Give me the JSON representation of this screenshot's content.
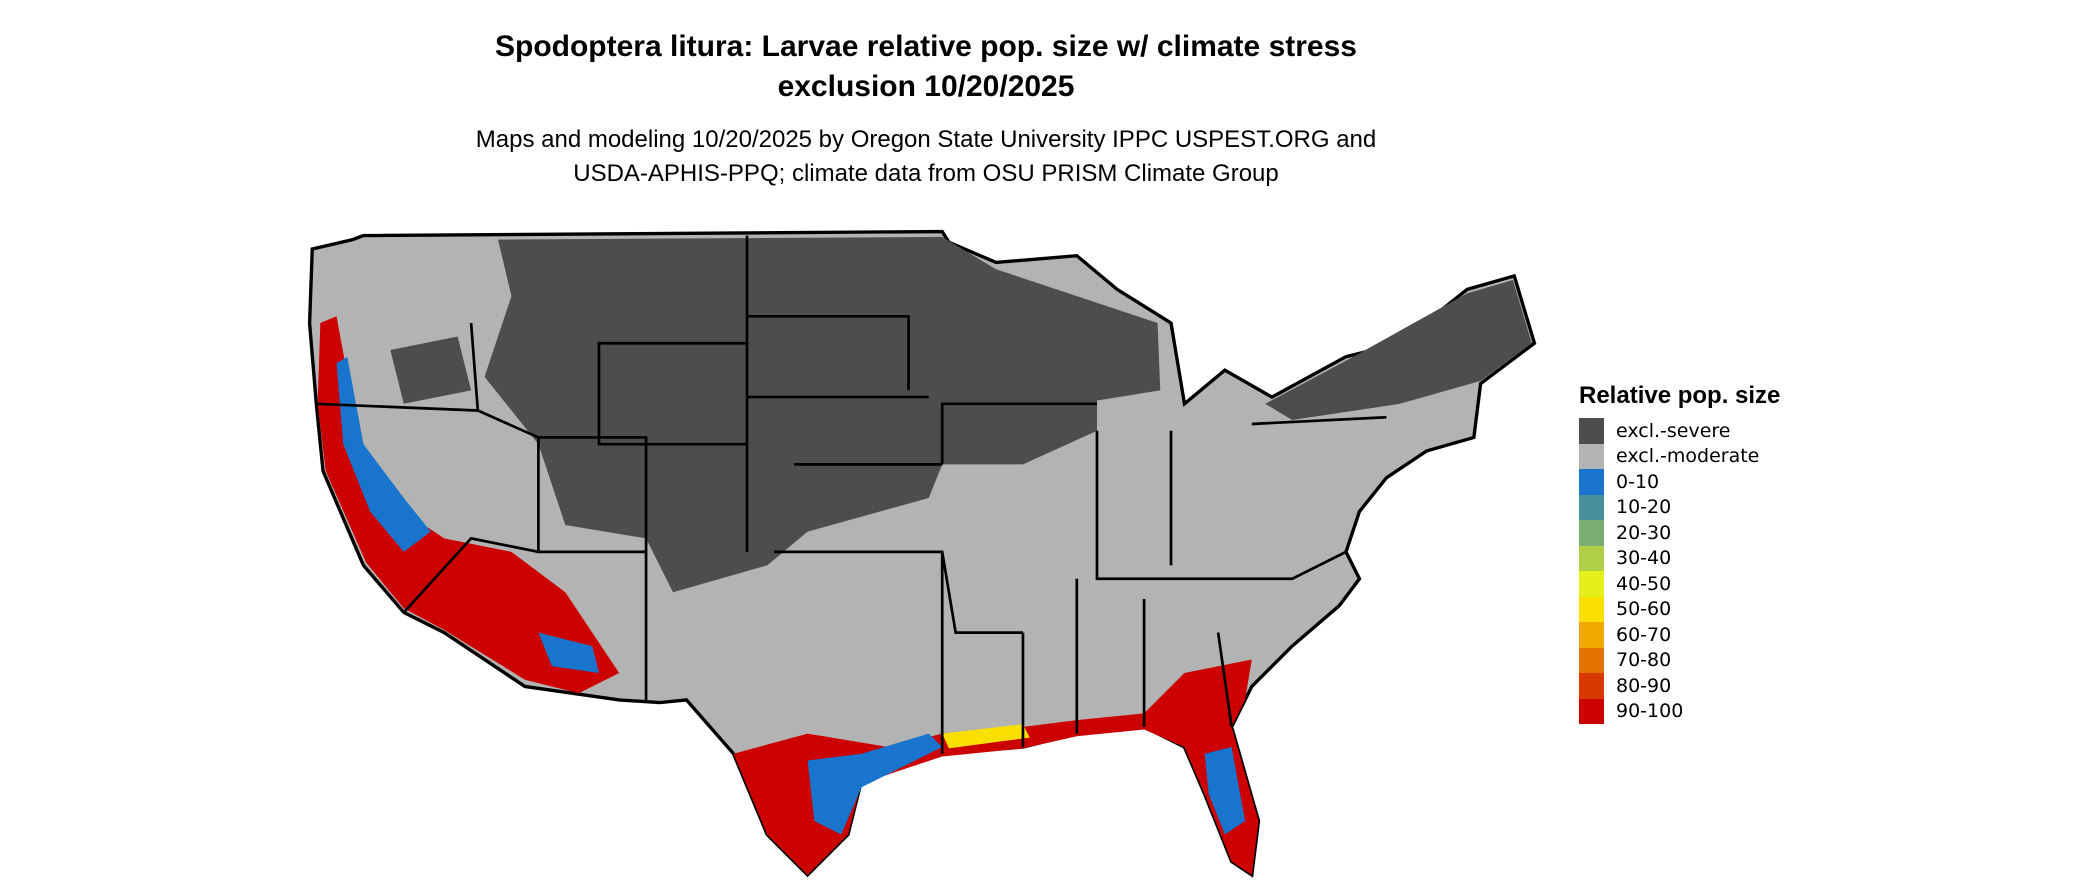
{
  "title": {
    "line1": "Spodoptera litura: Larvae relative pop. size w/ climate stress",
    "line2": "exclusion 10/20/2025"
  },
  "subtitle": {
    "line1": "Maps and modeling 10/20/2025 by Oregon State University IPPC USPEST.ORG and",
    "line2": "USDA-APHIS-PPQ; climate data from OSU PRISM Climate Group"
  },
  "legend": {
    "title": "Relative pop. size",
    "items": [
      {
        "label": "excl.-severe",
        "color": "#4d4d4d"
      },
      {
        "label": "excl.-moderate",
        "color": "#b3b3b3"
      },
      {
        "label": "0-10",
        "color": "#1874cd"
      },
      {
        "label": "10-20",
        "color": "#4a8f9e"
      },
      {
        "label": "20-30",
        "color": "#7bad74"
      },
      {
        "label": "30-40",
        "color": "#b1cf46"
      },
      {
        "label": "40-50",
        "color": "#e5ef19"
      },
      {
        "label": "50-60",
        "color": "#f9e000"
      },
      {
        "label": "60-70",
        "color": "#f0a800"
      },
      {
        "label": "70-80",
        "color": "#e37300"
      },
      {
        "label": "80-90",
        "color": "#d93800"
      },
      {
        "label": "90-100",
        "color": "#cd0000"
      }
    ]
  }
}
